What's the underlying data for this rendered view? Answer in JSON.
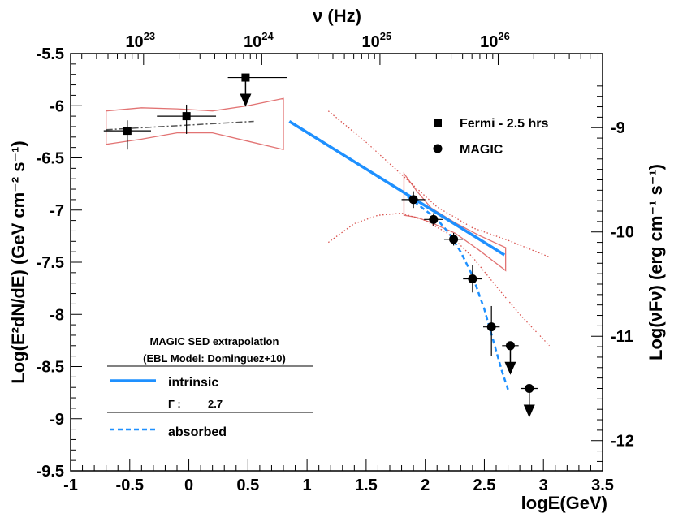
{
  "chart_data": {
    "type": "scatter",
    "xlabel": "logE(GeV)",
    "ylabel": "Log(E²dN/dE) (GeV cm⁻² s⁻¹)",
    "top_axis_label": "ν (Hz)",
    "right_axis_label": "Log(νFν) (erg cm⁻¹ s⁻¹)",
    "xlim": [
      -1,
      3.5
    ],
    "ylim": [
      -9.5,
      -5.5
    ],
    "x_ticks": [
      "-1",
      "-0.5",
      "0",
      "0.5",
      "1",
      "1.5",
      "2",
      "2.5",
      "3",
      "3.5"
    ],
    "y_ticks": [
      "-5.5",
      "-6",
      "-6.5",
      "-7",
      "-7.5",
      "-8",
      "-8.5",
      "-9",
      "-9.5"
    ],
    "top_ticks": [
      {
        "log_nu": 23,
        "base": "10",
        "exp": "23"
      },
      {
        "log_nu": 24,
        "base": "10",
        "exp": "24"
      },
      {
        "log_nu": 25,
        "base": "10",
        "exp": "25"
      },
      {
        "log_nu": 26,
        "base": "10",
        "exp": "26"
      }
    ],
    "right_ticks": [
      "-9",
      "-10",
      "-11",
      "-12"
    ],
    "series": [
      {
        "name": "Fermi - 2.5 hrs",
        "marker": "square",
        "points": [
          {
            "x": -0.52,
            "y": -6.24,
            "xerr": [
              0.2,
              0.2
            ],
            "yerr": [
              0.18,
              0.1
            ]
          },
          {
            "x": -0.02,
            "y": -6.1,
            "xerr": [
              0.25,
              0.25
            ],
            "yerr": [
              0.17,
              0.11
            ]
          }
        ],
        "upper_limits": [
          {
            "x": 0.48,
            "y": -5.73,
            "xerr": [
              0.15,
              0.35
            ]
          }
        ]
      },
      {
        "name": "MAGIC",
        "marker": "circle",
        "points": [
          {
            "x": 1.9,
            "y": -6.9,
            "xerr": [
              0.1,
              0.1
            ],
            "yerr": [
              0.08,
              0.08
            ]
          },
          {
            "x": 2.07,
            "y": -7.09,
            "xerr": [
              0.08,
              0.08
            ],
            "yerr": [
              0.06,
              0.06
            ]
          },
          {
            "x": 2.24,
            "y": -7.28,
            "xerr": [
              0.08,
              0.08
            ],
            "yerr": [
              0.06,
              0.06
            ]
          },
          {
            "x": 2.4,
            "y": -7.66,
            "xerr": [
              0.08,
              0.08
            ],
            "yerr": [
              0.13,
              0.13
            ]
          },
          {
            "x": 2.56,
            "y": -8.12,
            "xerr": [
              0.07,
              0.07
            ],
            "yerr": [
              0.28,
              0.2
            ]
          }
        ],
        "upper_limits": [
          {
            "x": 2.72,
            "y": -8.3,
            "xerr": [
              0.07,
              0.07
            ]
          },
          {
            "x": 2.88,
            "y": -8.71,
            "xerr": [
              0.07,
              0.07
            ]
          }
        ]
      }
    ],
    "curves": [
      {
        "name": "intrinsic",
        "style": "solid",
        "color": "#1e90ff",
        "x": [
          0.85,
          2.67
        ],
        "y": [
          -6.15,
          -7.43
        ]
      },
      {
        "name": "absorbed",
        "style": "dashed",
        "color": "#1e90ff",
        "x": [
          1.85,
          2.0,
          2.1,
          2.2,
          2.3,
          2.4,
          2.5,
          2.55,
          2.6,
          2.65,
          2.7
        ],
        "y": [
          -6.87,
          -7.0,
          -7.09,
          -7.22,
          -7.4,
          -7.63,
          -7.95,
          -8.15,
          -8.35,
          -8.55,
          -8.72
        ]
      },
      {
        "name": "fermi-fit",
        "style": "dashdot",
        "color": "#555555",
        "x": [
          -0.7,
          0.55
        ],
        "y": [
          -6.23,
          -6.15
        ]
      },
      {
        "name": "extrapolation-upper",
        "style": "dotted",
        "color": "#d9534f",
        "x": [
          1.18,
          1.5,
          1.8,
          2.1,
          2.4,
          2.7,
          3.05
        ],
        "y": [
          -6.05,
          -6.35,
          -6.66,
          -6.97,
          -7.17,
          -7.29,
          -7.45
        ]
      },
      {
        "name": "extrapolation-lower",
        "style": "dotted",
        "color": "#d9534f",
        "x": [
          1.18,
          1.4,
          1.6,
          1.8,
          2.0,
          2.2,
          2.4,
          2.6,
          2.8,
          3.05
        ],
        "y": [
          -7.31,
          -7.13,
          -7.05,
          -7.03,
          -7.1,
          -7.23,
          -7.45,
          -7.73,
          -8.0,
          -8.3
        ]
      }
    ],
    "butterflies": [
      {
        "name": "fermi-butterfly",
        "color": "#e27373",
        "upper": {
          "x": [
            -0.7,
            -0.4,
            -0.1,
            0.2,
            0.5,
            0.8
          ],
          "y": [
            -6.05,
            -6.02,
            -6.03,
            -6.05,
            -6.0,
            -5.93
          ]
        },
        "lower": {
          "x": [
            -0.7,
            -0.4,
            -0.1,
            0.2,
            0.5,
            0.8
          ],
          "y": [
            -6.37,
            -6.32,
            -6.26,
            -6.26,
            -6.34,
            -6.42
          ]
        }
      },
      {
        "name": "magic-butterfly",
        "color": "#e27373",
        "upper": {
          "x": [
            1.82,
            1.93,
            2.05,
            2.25,
            2.45,
            2.68
          ],
          "y": [
            -6.65,
            -6.82,
            -6.98,
            -7.12,
            -7.24,
            -7.36
          ]
        },
        "lower": {
          "x": [
            1.82,
            1.93,
            2.05,
            2.25,
            2.45,
            2.68
          ],
          "y": [
            -7.05,
            -7.07,
            -7.12,
            -7.22,
            -7.38,
            -7.58
          ]
        }
      }
    ],
    "legend": {
      "position": "top-right",
      "entries": [
        {
          "label": "Fermi - 2.5 hrs",
          "marker": "square"
        },
        {
          "label": "MAGIC",
          "marker": "circle"
        }
      ]
    },
    "info_box": {
      "position": "bottom-left",
      "title": "MAGIC SED extrapolation",
      "subtitle": "(EBL Model: Dominguez+10)",
      "intrinsic_label": "intrinsic",
      "gamma_label": "Γ :",
      "gamma_value": "2.7",
      "absorbed_label": "absorbed"
    }
  }
}
